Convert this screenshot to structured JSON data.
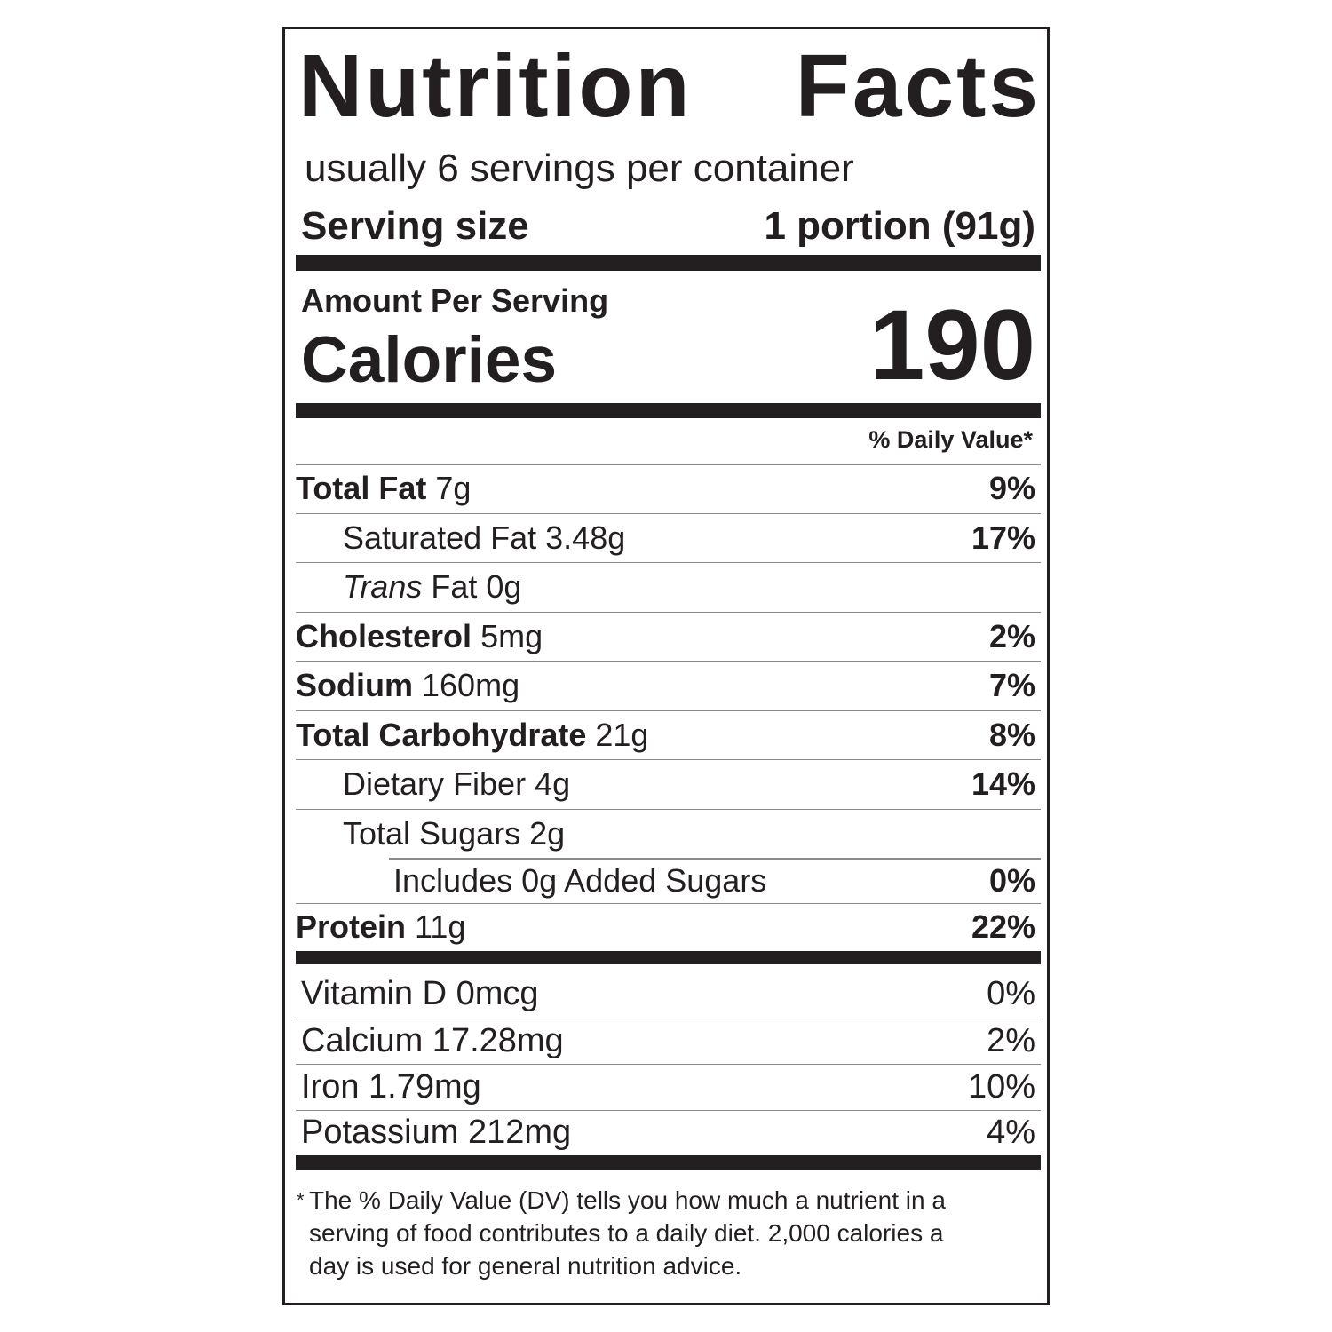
{
  "title": [
    "Nutrition",
    "Facts"
  ],
  "servings_per_container": "usually 6 servings per container",
  "serving_size": {
    "label": "Serving size",
    "value": "1 portion (91g)"
  },
  "amount_per_serving": "Amount Per Serving",
  "calories": {
    "label": "Calories",
    "value": "190"
  },
  "daily_value_header": "% Daily Value*",
  "nutrients": [
    {
      "name": "Total Fat",
      "amount": "7g",
      "dv": "9%"
    },
    {
      "name": "Saturated Fat",
      "amount": "3.48g",
      "dv": "17%"
    },
    {
      "name": "Trans",
      "name_suffix": "Fat",
      "amount": "0g",
      "dv": ""
    },
    {
      "name": "Cholesterol",
      "amount": "5mg",
      "dv": "2%"
    },
    {
      "name": "Sodium",
      "amount": "160mg",
      "dv": "7%"
    },
    {
      "name": "Total Carbohydrate",
      "amount": "21g",
      "dv": "8%"
    },
    {
      "name": "Dietary Fiber",
      "amount": "4g",
      "dv": "14%"
    },
    {
      "name": "Total Sugars",
      "amount": "2g",
      "dv": ""
    },
    {
      "name": "Includes 0g Added Sugars",
      "amount": "",
      "dv": "0%"
    },
    {
      "name": "Protein",
      "amount": "11g",
      "dv": "22%"
    }
  ],
  "vitamins": [
    {
      "name": "Vitamin D 0mcg",
      "dv": "0%"
    },
    {
      "name": "Calcium 17.28mg",
      "dv": "2%"
    },
    {
      "name": "Iron 1.79mg",
      "dv": "10%"
    },
    {
      "name": "Potassium 212mg",
      "dv": "4%"
    }
  ],
  "footnote": {
    "asterisk": "*",
    "lines": [
      "The % Daily Value (DV) tells you how much a nutrient in a",
      "serving of food contributes to a daily diet. 2,000 calories a",
      "day is used for general nutrition advice."
    ]
  }
}
